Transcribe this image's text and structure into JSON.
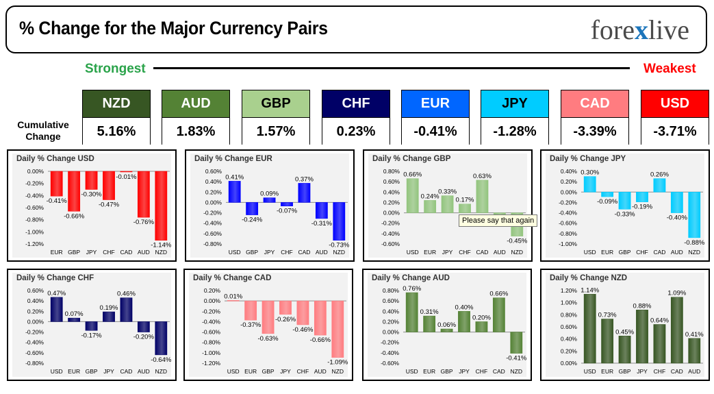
{
  "header": {
    "title": "% Change for the Major Currency Pairs",
    "logo_left": "fore",
    "logo_x": "x",
    "logo_right": "live"
  },
  "ranking": {
    "strongest_label": "Strongest",
    "weakest_label": "Weakest"
  },
  "cumulative": {
    "label_line1": "Cumulative",
    "label_line2": "Change",
    "currencies": [
      {
        "name": "NZD",
        "value": "5.16%",
        "color": "#375623",
        "text_color": "#ffffff"
      },
      {
        "name": "AUD",
        "value": "1.83%",
        "color": "#548235",
        "text_color": "#ffffff"
      },
      {
        "name": "GBP",
        "value": "1.57%",
        "color": "#a9d08e",
        "text_color": "#000000"
      },
      {
        "name": "CHF",
        "value": "0.23%",
        "color": "#000066",
        "text_color": "#ffffff"
      },
      {
        "name": "EUR",
        "value": "-0.41%",
        "color": "#0066ff",
        "text_color": "#ffffff"
      },
      {
        "name": "JPY",
        "value": "-1.28%",
        "color": "#00ccff",
        "text_color": "#000000"
      },
      {
        "name": "CAD",
        "value": "-3.39%",
        "color": "#ff7c80",
        "text_color": "#ffffff"
      },
      {
        "name": "USD",
        "value": "-3.71%",
        "color": "#ff0000",
        "text_color": "#ffffff"
      }
    ]
  },
  "tooltip": {
    "text": "Please say that again"
  },
  "chart_data": [
    {
      "type": "bar",
      "title": "Daily % Change USD",
      "color": "#ff0000",
      "categories": [
        "EUR",
        "GBP",
        "JPY",
        "CHF",
        "CAD",
        "AUD",
        "NZD"
      ],
      "values": [
        -0.41,
        -0.66,
        -0.3,
        -0.47,
        -0.01,
        -0.76,
        -1.14
      ],
      "labels": [
        "-0.41%",
        "-0.66%",
        "-0.30%",
        "-0.47%",
        "-0.01%",
        "-0.76%",
        "-1.14%"
      ],
      "yticks": [
        0.0,
        -0.2,
        -0.4,
        -0.6,
        -0.8,
        -1.0,
        -1.2
      ],
      "ytick_labels": [
        "0.00%",
        "-0.20%",
        "-0.40%",
        "-0.60%",
        "-0.80%",
        "-1.00%",
        "-1.20%"
      ],
      "ylim": [
        -1.2,
        0.0
      ]
    },
    {
      "type": "bar",
      "title": "Daily % Change EUR",
      "color": "#0000ff",
      "categories": [
        "USD",
        "GBP",
        "JPY",
        "CHF",
        "CAD",
        "AUD",
        "NZD"
      ],
      "values": [
        0.41,
        -0.24,
        0.09,
        -0.07,
        0.37,
        -0.31,
        -0.73
      ],
      "labels": [
        "0.41%",
        "-0.24%",
        "0.09%",
        "-0.07%",
        "0.37%",
        "-0.31%",
        "-0.73%"
      ],
      "yticks": [
        0.6,
        0.4,
        0.2,
        0.0,
        -0.2,
        -0.4,
        -0.6,
        -0.8
      ],
      "ytick_labels": [
        "0.60%",
        "0.40%",
        "0.20%",
        "0.00%",
        "-0.20%",
        "-0.40%",
        "-0.60%",
        "-0.80%"
      ],
      "ylim": [
        -0.8,
        0.6
      ]
    },
    {
      "type": "bar",
      "title": "Daily % Change GBP",
      "color": "#92c47d",
      "categories": [
        "USD",
        "EUR",
        "JPY",
        "CHF",
        "CAD",
        "AUD",
        "NZD"
      ],
      "values": [
        0.66,
        0.24,
        0.33,
        0.17,
        0.63,
        -0.06,
        -0.45
      ],
      "labels": [
        "0.66%",
        "0.24%",
        "0.33%",
        "0.17%",
        "0.63%",
        "-0.06%",
        "-0.45%"
      ],
      "yticks": [
        0.8,
        0.6,
        0.4,
        0.2,
        0.0,
        -0.2,
        -0.4,
        -0.6
      ],
      "ytick_labels": [
        "0.80%",
        "0.60%",
        "0.40%",
        "0.20%",
        "0.00%",
        "-0.20%",
        "-0.40%",
        "-0.60%"
      ],
      "ylim": [
        -0.6,
        0.8
      ]
    },
    {
      "type": "bar",
      "title": "Daily % Change JPY",
      "color": "#00ccff",
      "categories": [
        "USD",
        "EUR",
        "GBP",
        "CHF",
        "CAD",
        "AUD",
        "NZD"
      ],
      "values": [
        0.3,
        -0.09,
        -0.33,
        -0.19,
        0.26,
        -0.4,
        -0.88
      ],
      "labels": [
        "0.30%",
        "-0.09%",
        "-0.33%",
        "-0.19%",
        "0.26%",
        "-0.40%",
        "-0.88%"
      ],
      "yticks": [
        0.4,
        0.3,
        0.2,
        0.1,
        0.0,
        -0.1,
        -0.2,
        -0.3,
        -0.4,
        -0.5,
        -0.6,
        -0.7,
        -0.8,
        -0.9,
        -1.0
      ],
      "ytick_labels": [
        "0.40%",
        "0.30%",
        "0.20%",
        "0.10%",
        "0.00%",
        "-0.10%",
        "-0.20%",
        "-0.30%",
        "-0.40%",
        "-0.50%",
        "-0.60%",
        "-0.70%",
        "-0.80%",
        "-0.90%",
        "-1.00%"
      ],
      "ytick_labels_shown": [
        "0.40%",
        "0.20%",
        "0.00%",
        "-0.20%",
        "-0.40%",
        "-0.60%",
        "-0.80%",
        "-1.00%"
      ],
      "ylim": [
        -1.0,
        0.4
      ]
    },
    {
      "type": "bar",
      "title": "Daily % Change CHF",
      "color": "#000066",
      "categories": [
        "USD",
        "EUR",
        "GBP",
        "JPY",
        "CAD",
        "AUD",
        "NZD"
      ],
      "values": [
        0.47,
        0.07,
        -0.17,
        0.19,
        0.46,
        -0.2,
        -0.64
      ],
      "labels": [
        "0.47%",
        "0.07%",
        "-0.17%",
        "0.19%",
        "0.46%",
        "-0.20%",
        "-0.64%"
      ],
      "yticks": [
        0.6,
        0.4,
        0.2,
        0.0,
        -0.2,
        -0.4,
        -0.6,
        -0.8
      ],
      "ytick_labels": [
        "0.60%",
        "0.40%",
        "0.20%",
        "0.00%",
        "-0.20%",
        "-0.40%",
        "-0.60%",
        "-0.80%"
      ],
      "ylim": [
        -0.8,
        0.6
      ]
    },
    {
      "type": "bar",
      "title": "Daily % Change CAD",
      "color": "#ff7c80",
      "categories": [
        "USD",
        "EUR",
        "GBP",
        "JPY",
        "CHF",
        "AUD",
        "NZD"
      ],
      "values": [
        0.01,
        -0.37,
        -0.63,
        -0.26,
        -0.46,
        -0.66,
        -1.09
      ],
      "labels": [
        "0.01%",
        "-0.37%",
        "-0.63%",
        "-0.26%",
        "-0.46%",
        "-0.66%",
        "-1.09%"
      ],
      "yticks": [
        0.2,
        0.0,
        -0.2,
        -0.4,
        -0.6,
        -0.8,
        -1.0,
        -1.2
      ],
      "ytick_labels": [
        "0.20%",
        "0.00%",
        "-0.20%",
        "-0.40%",
        "-0.60%",
        "-0.80%",
        "-1.00%",
        "-1.20%"
      ],
      "ylim": [
        -1.2,
        0.2
      ]
    },
    {
      "type": "bar",
      "title": "Daily % Change AUD",
      "color": "#548235",
      "categories": [
        "USD",
        "EUR",
        "GBP",
        "JPY",
        "CHF",
        "CAD",
        "NZD"
      ],
      "values": [
        0.76,
        0.31,
        0.06,
        0.4,
        0.2,
        0.66,
        -0.41
      ],
      "labels": [
        "0.76%",
        "0.31%",
        "0.06%",
        "0.40%",
        "0.20%",
        "0.66%",
        "-0.41%"
      ],
      "yticks": [
        0.8,
        0.6,
        0.4,
        0.2,
        0.0,
        -0.2,
        -0.4,
        -0.6
      ],
      "ytick_labels": [
        "0.80%",
        "0.60%",
        "0.40%",
        "0.20%",
        "0.00%",
        "-0.20%",
        "-0.40%",
        "-0.60%"
      ],
      "ylim": [
        -0.6,
        0.8
      ]
    },
    {
      "type": "bar",
      "title": "Daily % Change NZD",
      "color": "#375623",
      "categories": [
        "USD",
        "EUR",
        "GBP",
        "JPY",
        "CHF",
        "CAD",
        "AUD"
      ],
      "values": [
        1.14,
        0.73,
        0.45,
        0.88,
        0.64,
        1.09,
        0.41
      ],
      "labels": [
        "1.14%",
        "0.73%",
        "0.45%",
        "0.88%",
        "0.64%",
        "1.09%",
        "0.41%"
      ],
      "yticks": [
        1.2,
        1.0,
        0.8,
        0.6,
        0.4,
        0.2,
        0.0
      ],
      "ytick_labels": [
        "1.20%",
        "1.00%",
        "0.80%",
        "0.60%",
        "0.40%",
        "0.20%",
        "0.00%"
      ],
      "ylim": [
        0.0,
        1.2
      ]
    }
  ]
}
